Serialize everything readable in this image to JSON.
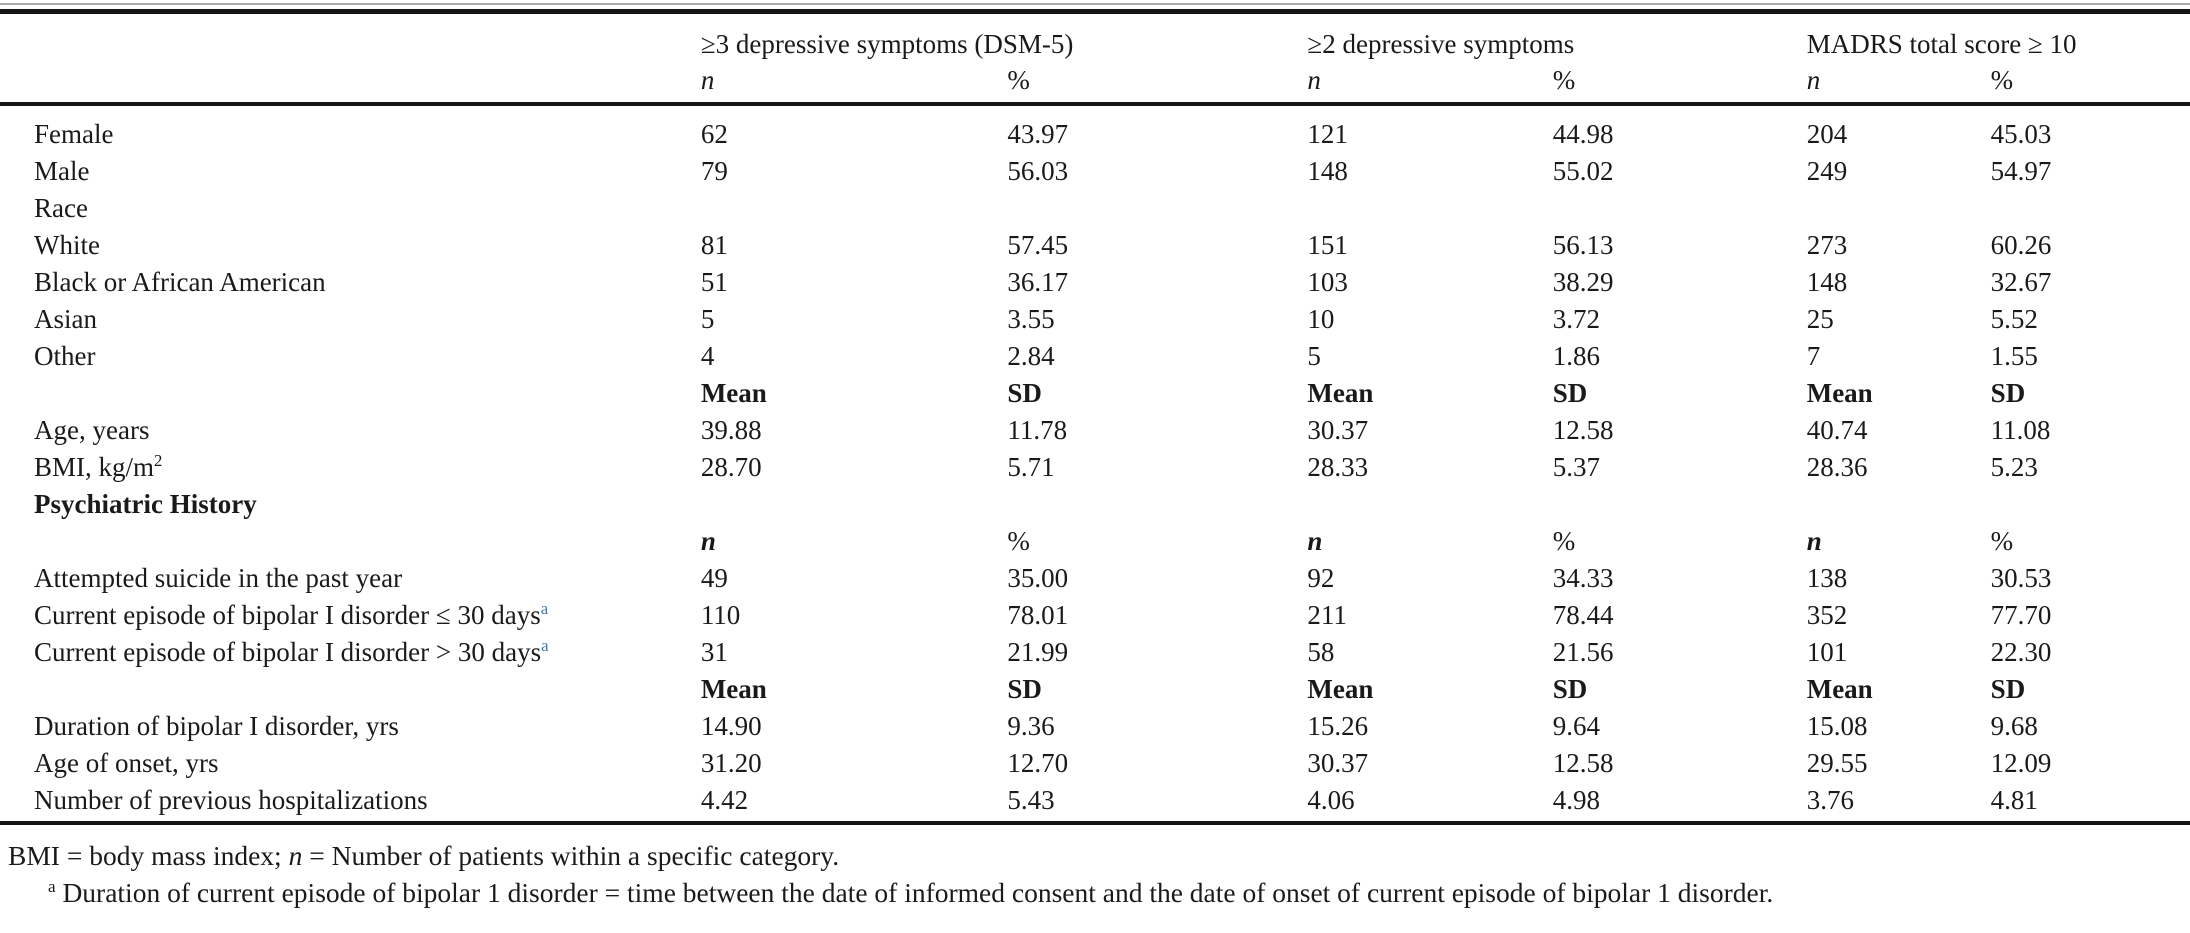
{
  "page": {
    "background": "#ffffff",
    "text_color": "#1a1a1a",
    "accent_color": "#3d7ab5"
  },
  "table": {
    "groups": [
      {
        "label": "≥3 depressive symptoms (DSM-5)"
      },
      {
        "label": "≥2 depressive symptoms"
      },
      {
        "label": "MADRS total score ≥ 10"
      }
    ],
    "subheader": {
      "n": "n",
      "pct": "%"
    },
    "rows": [
      {
        "type": "data",
        "label": "Female",
        "cells": [
          "62",
          "43.97",
          "121",
          "44.98",
          "204",
          "45.03"
        ]
      },
      {
        "type": "data",
        "label": "Male",
        "cells": [
          "79",
          "56.03",
          "148",
          "55.02",
          "249",
          "54.97"
        ]
      },
      {
        "type": "data",
        "label": "Race",
        "cells": [
          "",
          "",
          "",
          "",
          "",
          ""
        ]
      },
      {
        "type": "data",
        "label": "White",
        "cells": [
          "81",
          "57.45",
          "151",
          "56.13",
          "273",
          "60.26"
        ]
      },
      {
        "type": "data",
        "label": "Black or African American",
        "cells": [
          "51",
          "36.17",
          "103",
          "38.29",
          "148",
          "32.67"
        ]
      },
      {
        "type": "data",
        "label": "Asian",
        "cells": [
          "5",
          "3.55",
          "10",
          "3.72",
          "25",
          "5.52"
        ]
      },
      {
        "type": "data",
        "label": "Other",
        "cells": [
          "4",
          "2.84",
          "5",
          "1.86",
          "7",
          "1.55"
        ]
      },
      {
        "type": "measure",
        "label": "",
        "cells": [
          "Mean",
          "SD",
          "Mean",
          "SD",
          "Mean",
          "SD"
        ]
      },
      {
        "type": "data",
        "label": "Age, years",
        "cells": [
          "39.88",
          "11.78",
          "30.37",
          "12.58",
          "40.74",
          "11.08"
        ]
      },
      {
        "type": "data",
        "label": "BMI, kg/m",
        "sup": "2",
        "sup_style": "plain",
        "cells": [
          "28.70",
          "5.71",
          "28.33",
          "5.37",
          "28.36",
          "5.23"
        ]
      },
      {
        "type": "section",
        "label": "Psychiatric History",
        "cells": [
          "",
          "",
          "",
          "",
          "",
          ""
        ]
      },
      {
        "type": "stat",
        "label": "",
        "cells": [
          "n",
          "%",
          "n",
          "%",
          "n",
          "%"
        ]
      },
      {
        "type": "data",
        "label": "Attempted suicide in the past year",
        "cells": [
          "49",
          "35.00",
          "92",
          "34.33",
          "138",
          "30.53"
        ]
      },
      {
        "type": "data",
        "label": "Current episode of bipolar I disorder ≤ 30 days",
        "sup": "a",
        "sup_style": "accent",
        "cells": [
          "110",
          "78.01",
          "211",
          "78.44",
          "352",
          "77.70"
        ]
      },
      {
        "type": "data",
        "label": "Current episode of bipolar I disorder > 30 days",
        "sup": "a",
        "sup_style": "accent",
        "cells": [
          "31",
          "21.99",
          "58",
          "21.56",
          "101",
          "22.30"
        ]
      },
      {
        "type": "measure",
        "label": "",
        "cells": [
          "Mean",
          "SD",
          "Mean",
          "SD",
          "Mean",
          "SD"
        ]
      },
      {
        "type": "data",
        "label": "Duration of bipolar I disorder, yrs",
        "cells": [
          "14.90",
          "9.36",
          "15.26",
          "9.64",
          "15.08",
          "9.68"
        ]
      },
      {
        "type": "data",
        "label": "Age of onset, yrs",
        "cells": [
          "31.20",
          "12.70",
          "30.37",
          "12.58",
          "29.55",
          "12.09"
        ]
      },
      {
        "type": "data",
        "label": "Number of previous hospitalizations",
        "cells": [
          "4.42",
          "5.43",
          "4.06",
          "4.98",
          "3.76",
          "4.81"
        ]
      }
    ]
  },
  "footer": {
    "abbreviations": [
      {
        "text": "BMI = body mass index; "
      },
      {
        "text": "n",
        "italic": true
      },
      {
        "text": " = Number of patients within a specific category."
      }
    ],
    "footnote": [
      {
        "text": "a",
        "sup": true
      },
      {
        "text": " Duration of current episode of bipolar 1 disorder = time between the date of informed consent and the date of onset of current episode of bipolar 1 disorder."
      }
    ]
  }
}
